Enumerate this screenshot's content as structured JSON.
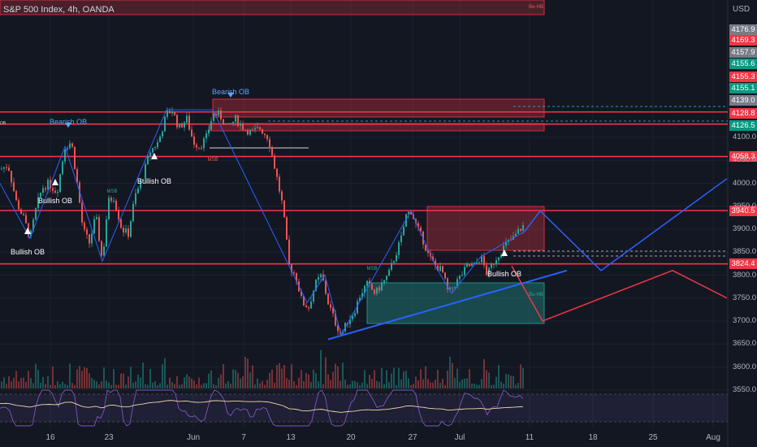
{
  "header": {
    "title": "S&P 500 Index, 4h, OANDA",
    "currency": "USD"
  },
  "price_axis": {
    "ticks": [
      "4100.0",
      "4050.0",
      "4000.0",
      "3950.0",
      "3900.0",
      "3850.0",
      "3800.0",
      "3750.0",
      "3700.0",
      "3650.0",
      "3600.0",
      "3550.0"
    ],
    "tags": [
      {
        "text": "4176.9",
        "color": "#787b86"
      },
      {
        "text": "4169.3",
        "color": "#f23645"
      },
      {
        "text": "4157.9",
        "color": "#787b86"
      },
      {
        "text": "4155.6",
        "color": "#089981"
      },
      {
        "text": "4155.3",
        "color": "#f23645"
      },
      {
        "text": "4155.1",
        "color": "#089981"
      },
      {
        "text": "4139.0",
        "color": "#787b86"
      },
      {
        "text": "4128.8",
        "color": "#f23645"
      },
      {
        "text": "4126.5",
        "color": "#089981"
      },
      {
        "text": "4058.3",
        "color": "#f23645"
      },
      {
        "text": "3940.5",
        "color": "#f23645"
      },
      {
        "text": "3824.4",
        "color": "#f23645"
      }
    ]
  },
  "time_axis": [
    "16",
    "23",
    "Jun",
    "7",
    "13",
    "20",
    "27",
    "Jul",
    "11",
    "18",
    "25",
    "Aug"
  ],
  "annotations": {
    "bearish_ob_1": "Bearish OB",
    "bearish_ob_2": "Bearish OB",
    "bullish_ob_1": "Bullish OB",
    "bullish_ob_2": "Bullish OB",
    "bullish_ob_3": "Bullish OB",
    "bullish_ob_4": "Bullish OB",
    "msb_1": "MSB",
    "msb_2": "MSB",
    "msb_3": "MSB",
    "ob_left": "OB",
    "zone_tag_be": "Be-HB",
    "zone_tag_bu": "Bu-HB"
  },
  "colors": {
    "background": "#131722",
    "bull": "#26a69a",
    "bear": "#ef5350",
    "resistance": "#f23645",
    "projection_blue": "#2962ff",
    "projection_red": "#f23645"
  },
  "chart_data": {
    "type": "candlestick",
    "title": "S&P 500 Index, 4h, OANDA",
    "ylabel": "USD",
    "ylim": [
      3530,
      4200
    ],
    "horizontal_levels": [
      4155.3,
      4128.8,
      4058.3,
      3940.5,
      3824.4
    ],
    "close_path": [
      [
        0,
        4030
      ],
      [
        10,
        4040
      ],
      [
        20,
        3960
      ],
      [
        30,
        3920
      ],
      [
        37,
        3880
      ],
      [
        45,
        3950
      ],
      [
        52,
        3990
      ],
      [
        60,
        4000
      ],
      [
        70,
        3980
      ],
      [
        80,
        4080
      ],
      [
        88,
        4090
      ],
      [
        95,
        4000
      ],
      [
        102,
        3900
      ],
      [
        110,
        3870
      ],
      [
        118,
        3930
      ],
      [
        126,
        3830
      ],
      [
        133,
        3960
      ],
      [
        140,
        3970
      ],
      [
        150,
        3900
      ],
      [
        158,
        3890
      ],
      [
        166,
        3970
      ],
      [
        175,
        4010
      ],
      [
        185,
        4070
      ],
      [
        195,
        4090
      ],
      [
        205,
        4150
      ],
      [
        212,
        4160
      ],
      [
        220,
        4120
      ],
      [
        230,
        4140
      ],
      [
        238,
        4090
      ],
      [
        246,
        4080
      ],
      [
        254,
        4100
      ],
      [
        262,
        4150
      ],
      [
        270,
        4150
      ],
      [
        280,
        4120
      ],
      [
        290,
        4140
      ],
      [
        300,
        4120
      ],
      [
        310,
        4110
      ],
      [
        320,
        4120
      ],
      [
        330,
        4100
      ],
      [
        340,
        4020
      ],
      [
        348,
        3950
      ],
      [
        356,
        3820
      ],
      [
        364,
        3800
      ],
      [
        372,
        3740
      ],
      [
        380,
        3730
      ],
      [
        388,
        3780
      ],
      [
        396,
        3800
      ],
      [
        404,
        3740
      ],
      [
        412,
        3700
      ],
      [
        420,
        3670
      ],
      [
        428,
        3700
      ],
      [
        436,
        3720
      ],
      [
        444,
        3760
      ],
      [
        452,
        3780
      ],
      [
        462,
        3760
      ],
      [
        470,
        3780
      ],
      [
        478,
        3800
      ],
      [
        486,
        3840
      ],
      [
        494,
        3880
      ],
      [
        500,
        3930
      ],
      [
        506,
        3940
      ],
      [
        514,
        3900
      ],
      [
        520,
        3880
      ],
      [
        528,
        3840
      ],
      [
        536,
        3820
      ],
      [
        544,
        3810
      ],
      [
        552,
        3760
      ],
      [
        560,
        3780
      ],
      [
        568,
        3800
      ],
      [
        576,
        3820
      ],
      [
        584,
        3820
      ],
      [
        592,
        3840
      ],
      [
        600,
        3800
      ],
      [
        608,
        3830
      ],
      [
        616,
        3850
      ],
      [
        624,
        3870
      ],
      [
        632,
        3880
      ],
      [
        640,
        3900
      ],
      [
        646,
        3910
      ]
    ],
    "projections": [
      {
        "color": "blue",
        "points": [
          [
            646,
            3895
          ],
          [
            665,
            3940
          ],
          [
            740,
            3810
          ],
          [
            895,
            4010
          ]
        ]
      },
      {
        "color": "red",
        "points": [
          [
            630,
            3820
          ],
          [
            668,
            3700
          ],
          [
            828,
            3810
          ],
          [
            895,
            3750
          ]
        ]
      }
    ]
  }
}
